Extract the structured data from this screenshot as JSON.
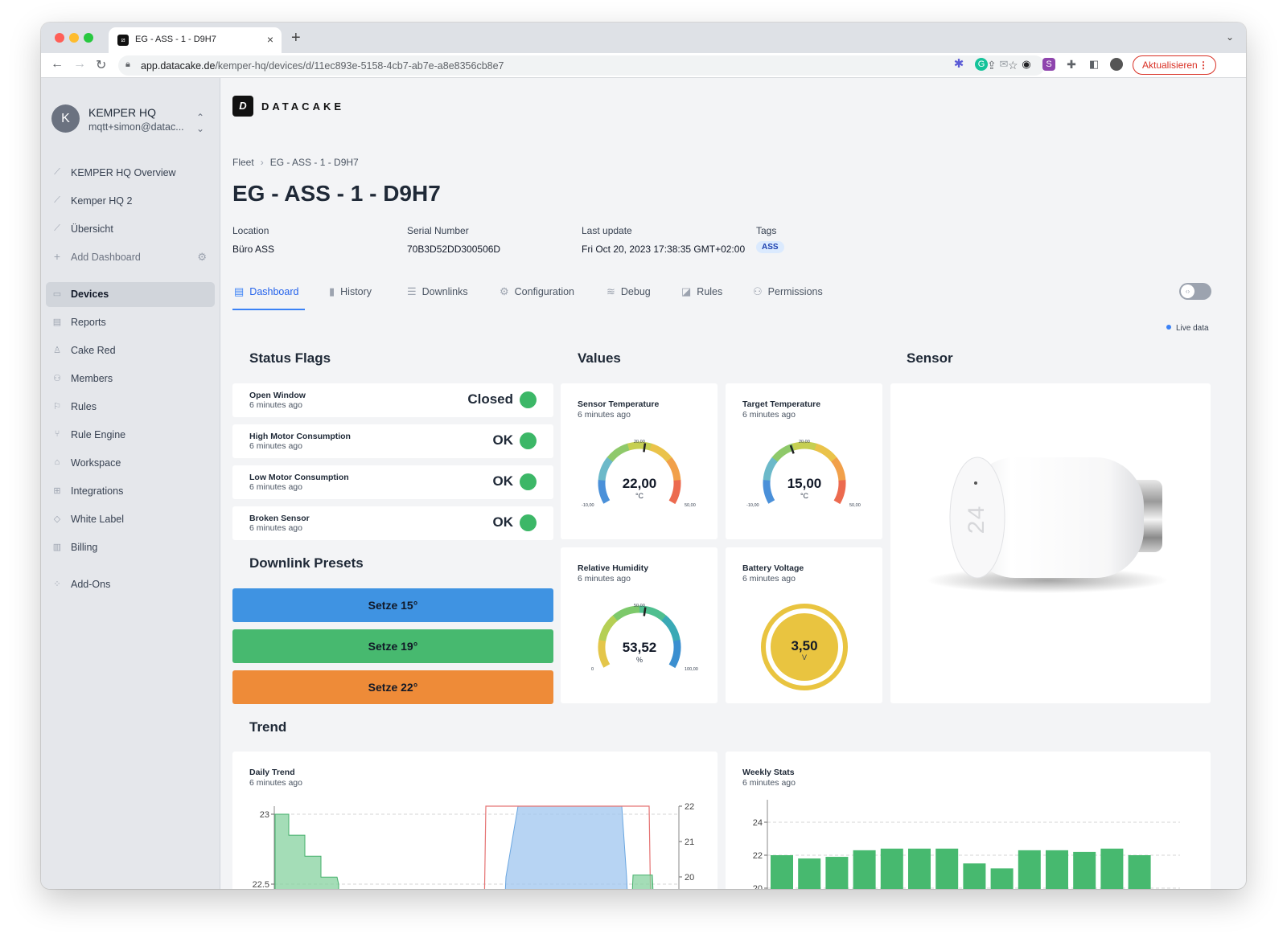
{
  "browser": {
    "tab_title": "EG - ASS - 1 - D9H7",
    "url_host": "app.datacake.de",
    "url_path": "/kemper-hq/devices/d/11ec893e-5158-4cb7-ab7e-a8e8356cb8e7",
    "update_label": "Aktualisieren"
  },
  "sidebar": {
    "org_initial": "K",
    "org_name": "KEMPER HQ",
    "org_email": "mqtt+simon@datac...",
    "dashboards": [
      {
        "label": "KEMPER HQ Overview",
        "icon": "chart-icon"
      },
      {
        "label": "Kemper HQ 2",
        "icon": "chart-icon"
      },
      {
        "label": "Übersicht",
        "icon": "chart-icon"
      }
    ],
    "add_dashboard": "Add Dashboard",
    "items": [
      {
        "label": "Devices",
        "icon": "devices-icon"
      },
      {
        "label": "Reports",
        "icon": "reports-icon"
      },
      {
        "label": "Cake Red",
        "icon": "cake-red-icon"
      },
      {
        "label": "Members",
        "icon": "members-icon"
      },
      {
        "label": "Rules",
        "icon": "rules-icon"
      },
      {
        "label": "Rule Engine",
        "icon": "rule-engine-icon"
      },
      {
        "label": "Workspace",
        "icon": "workspace-icon"
      },
      {
        "label": "Integrations",
        "icon": "integrations-icon"
      },
      {
        "label": "White Label",
        "icon": "tag-icon"
      },
      {
        "label": "Billing",
        "icon": "billing-icon"
      },
      {
        "label": "Add-Ons",
        "icon": "addons-icon"
      }
    ]
  },
  "header": {
    "logo_text": "DATACAKE",
    "breadcrumb": [
      "Fleet",
      "EG - ASS - 1 - D9H7"
    ],
    "title": "EG - ASS - 1 - D9H7"
  },
  "meta": {
    "location_label": "Location",
    "location_value": "Büro ASS",
    "serial_label": "Serial Number",
    "serial_value": "70B3D52DD300506D",
    "last_update_label": "Last update",
    "last_update_value": "Fri Oct 20, 2023 17:38:35 GMT+02:00",
    "tags_label": "Tags",
    "tag": "ASS"
  },
  "tabs": [
    {
      "label": "Dashboard",
      "icon": "dashboard-icon"
    },
    {
      "label": "History",
      "icon": "history-icon"
    },
    {
      "label": "Downlinks",
      "icon": "downlinks-icon"
    },
    {
      "label": "Configuration",
      "icon": "gear-icon"
    },
    {
      "label": "Debug",
      "icon": "debug-icon"
    },
    {
      "label": "Rules",
      "icon": "rules-icon"
    },
    {
      "label": "Permissions",
      "icon": "permissions-icon"
    }
  ],
  "live_data_label": "Live data",
  "sections": {
    "status_flags": "Status Flags",
    "values": "Values",
    "sensor": "Sensor",
    "downlink_presets": "Downlink Presets",
    "trend": "Trend"
  },
  "status_flags": [
    {
      "name": "Open Window",
      "ago": "6 minutes ago",
      "value": "Closed",
      "color": "#3cb767"
    },
    {
      "name": "High Motor Consumption",
      "ago": "6 minutes ago",
      "value": "OK",
      "color": "#3cb767"
    },
    {
      "name": "Low Motor Consumption",
      "ago": "6 minutes ago",
      "value": "OK",
      "color": "#3cb767"
    },
    {
      "name": "Broken Sensor",
      "ago": "6 minutes ago",
      "value": "OK",
      "color": "#3cb767"
    }
  ],
  "presets": [
    {
      "label": "Setze 15°",
      "color": "#3f93e2"
    },
    {
      "label": "Setze 19°",
      "color": "#47b96f"
    },
    {
      "label": "Setze 22°",
      "color": "#ee8b38"
    }
  ],
  "gauges": [
    {
      "title": "Sensor Temperature",
      "ago": "6 minutes ago",
      "value": 22.0,
      "display": "22,00",
      "unit": "°C",
      "min": -10,
      "max": 50,
      "min_label": "-10,00",
      "mid_label": "20,00",
      "max_label": "50,00",
      "scheme": "temp"
    },
    {
      "title": "Target Temperature",
      "ago": "6 minutes ago",
      "value": 15.0,
      "display": "15,00",
      "unit": "°C",
      "min": -10,
      "max": 50,
      "min_label": "-10,00",
      "mid_label": "20,00",
      "max_label": "50,00",
      "scheme": "temp"
    },
    {
      "title": "Relative Humidity",
      "ago": "6 minutes ago",
      "value": 53.52,
      "display": "53,52",
      "unit": "%",
      "min": 0,
      "max": 100,
      "min_label": "0",
      "mid_label": "50,00",
      "max_label": "100,00",
      "scheme": "hum"
    }
  ],
  "battery": {
    "title": "Battery Voltage",
    "ago": "6 minutes ago",
    "display": "3,50",
    "unit": "V",
    "color": "#e9c440"
  },
  "device_display": "24",
  "trend": {
    "daily": {
      "title": "Daily Trend",
      "ago": "6 minutes ago"
    },
    "weekly": {
      "title": "Weekly Stats",
      "ago": "6 minutes ago"
    }
  },
  "chart_data": [
    {
      "type": "area",
      "title": "Daily Trend",
      "y_left_ticks": [
        "23",
        "22.5"
      ],
      "y_right_ticks": [
        "22",
        "21",
        "20"
      ],
      "series": [
        {
          "values": [
            23.0,
            23.0,
            22.85,
            22.85,
            22.7,
            22.7,
            22.55,
            22.55,
            22.5
          ],
          "color": "#86d19f"
        },
        {
          "values": [
            20.0,
            22.0,
            22.0,
            22.0,
            20.0
          ],
          "color": "#9fc6ef"
        }
      ]
    },
    {
      "type": "bar",
      "title": "Weekly Stats",
      "y_ticks": [
        "24",
        "22",
        "20"
      ],
      "ylim": [
        20,
        25
      ],
      "values": [
        22.0,
        21.8,
        21.9,
        22.3,
        22.4,
        22.4,
        22.4,
        21.5,
        21.2,
        22.3,
        22.3,
        22.2,
        22.4,
        22.0
      ],
      "color": "#47b96f"
    }
  ]
}
